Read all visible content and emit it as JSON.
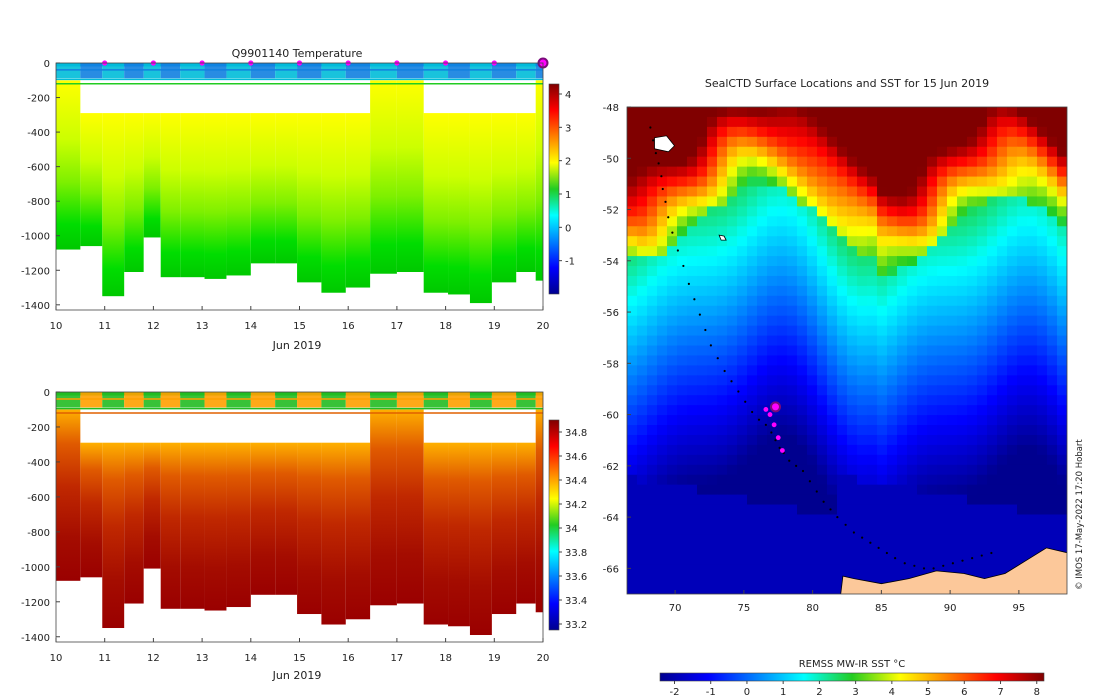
{
  "colors": {
    "land": "#fcc89a",
    "seal_marker": "#ff00ff",
    "latest_marker": "#7a0a7a"
  },
  "chart_data": [
    {
      "type": "heatmap",
      "title": "Q9901140  Temperature",
      "xlabel": "Jun 2019",
      "x_ticks": [
        10,
        11,
        12,
        13,
        14,
        15,
        16,
        17,
        18,
        19,
        20
      ],
      "xlim": [
        10,
        20
      ],
      "y_ticks": [
        0,
        -200,
        -400,
        -600,
        -800,
        -1000,
        -1200,
        -1400
      ],
      "ylim": [
        -1430,
        0
      ],
      "colorbar": {
        "ticks": [
          4,
          3,
          2,
          1,
          0,
          -1
        ],
        "range": [
          -2,
          4.3
        ]
      },
      "profile_days": [
        10.3,
        10.7,
        11.2,
        11.6,
        12.0,
        12.3,
        12.8,
        13.3,
        13.7,
        14.3,
        14.7,
        15.2,
        15.7,
        16.2,
        16.7,
        17.3,
        17.8,
        18.3,
        18.7,
        19.2,
        19.7,
        20.0
      ],
      "profile_max_depth": [
        -1080,
        -1060,
        -1350,
        -1210,
        -1010,
        -1240,
        -1240,
        -1250,
        -1230,
        -1160,
        -1160,
        -1270,
        -1330,
        -1300,
        -1220,
        -1210,
        -1330,
        -1340,
        -1390,
        -1270,
        -1210,
        -1260
      ],
      "seal_position_days": [
        11,
        12,
        13,
        14,
        15,
        16,
        17,
        18,
        19,
        20
      ]
    },
    {
      "type": "heatmap",
      "title": "",
      "xlabel": "Jun 2019",
      "x_ticks": [
        10,
        11,
        12,
        13,
        14,
        15,
        16,
        17,
        18,
        19,
        20
      ],
      "xlim": [
        10,
        20
      ],
      "y_ticks": [
        0,
        -200,
        -400,
        -600,
        -800,
        -1000,
        -1200,
        -1400
      ],
      "ylim": [
        -1430,
        0
      ],
      "colorbar": {
        "ticks": [
          34.8,
          34.6,
          34.4,
          34.2,
          34,
          33.8,
          33.6,
          33.4,
          33.2
        ],
        "range": [
          33.15,
          34.9
        ]
      }
    },
    {
      "type": "heatmap",
      "title": "SealCTD Surface Locations and SST for 15 Jun 2019",
      "x_ticks": [
        70,
        75,
        80,
        85,
        90,
        95
      ],
      "xlim": [
        66.5,
        98.5
      ],
      "y_ticks": [
        -48,
        -50,
        -52,
        -54,
        -56,
        -58,
        -60,
        -62,
        -64,
        -66
      ],
      "ylim": [
        -67,
        -48
      ],
      "colorbar": {
        "label": "REMSS MW-IR SST °C",
        "ticks": [
          -2,
          -1,
          0,
          1,
          2,
          3,
          4,
          5,
          6,
          7,
          8
        ],
        "range": [
          -2.4,
          8.2
        ]
      },
      "seal_track_lon": [
        68.2,
        68.4,
        68.6,
        68.8,
        69.0,
        69.1,
        69.3,
        69.5,
        69.8,
        70.2,
        70.6,
        71.0,
        71.4,
        71.8,
        72.2,
        72.6,
        73.1,
        73.6,
        74.1,
        74.6,
        75.1,
        75.6,
        76.1,
        76.6,
        77.0,
        77.3,
        77.6,
        77.9,
        78.3,
        78.8,
        79.3,
        79.8,
        80.3,
        80.8,
        81.3,
        81.8,
        82.4,
        83.0,
        83.6,
        84.2,
        84.8,
        85.4,
        86.0,
        86.7,
        87.4,
        88.1,
        88.8,
        89.5,
        90.2,
        90.9,
        91.6,
        92.3,
        93.0
      ],
      "seal_track_lat": [
        -48.8,
        -49.3,
        -49.8,
        -50.2,
        -50.7,
        -51.2,
        -51.7,
        -52.3,
        -52.9,
        -53.6,
        -54.2,
        -54.9,
        -55.5,
        -56.1,
        -56.7,
        -57.3,
        -57.8,
        -58.3,
        -58.7,
        -59.1,
        -59.5,
        -59.9,
        -60.2,
        -60.4,
        -60.7,
        -61.0,
        -61.3,
        -61.5,
        -61.8,
        -62.0,
        -62.2,
        -62.6,
        -63.0,
        -63.4,
        -63.7,
        -64.0,
        -64.3,
        -64.6,
        -64.8,
        -65.0,
        -65.2,
        -65.4,
        -65.6,
        -65.8,
        -65.9,
        -66.0,
        -66.0,
        -65.9,
        -65.8,
        -65.7,
        -65.6,
        -65.5,
        -65.4
      ],
      "recent_positions_lon": [
        76.6,
        76.9,
        77.2,
        77.5,
        77.8
      ],
      "recent_positions_lat": [
        -59.8,
        -60.0,
        -60.4,
        -60.9,
        -61.4
      ],
      "latest_position": {
        "lon": 77.3,
        "lat": -59.7
      }
    }
  ],
  "watermark": "© IMOS 17-May-2022 17:20 Hobart"
}
